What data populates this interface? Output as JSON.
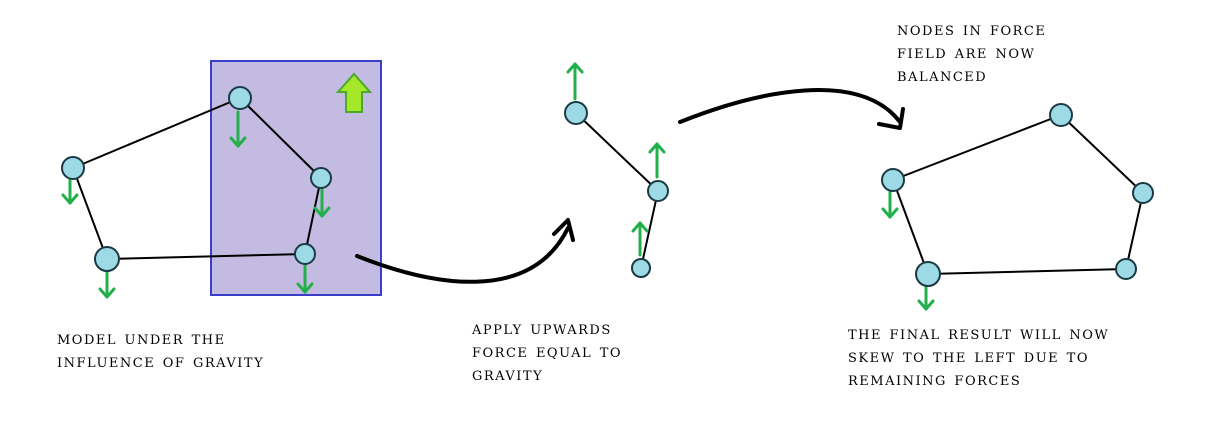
{
  "colors": {
    "node_fill": "#9ed9e6",
    "node_stroke": "#1a3a44",
    "edge": "#000000",
    "force_arrow": "#22b04a",
    "field_fill": "#c3bbe1",
    "field_stroke": "#3a3ec8",
    "field_arrow_fill": "#a5e82a",
    "field_arrow_stroke": "#4aa82a",
    "flow_arrow": "#000000"
  },
  "icons": {
    "force_arrow_down": "arrow-down-icon",
    "force_arrow_up": "arrow-up-icon",
    "field_direction": "up-arrow-icon"
  },
  "captions": {
    "step1": [
      "MODEL UNDER THE",
      "INFLUENCE OF GRAVITY"
    ],
    "step2": [
      "APPLY UPWARDS",
      "FORCE EQUAL TO",
      "GRAVITY"
    ],
    "step3_top": [
      "NODES IN FORCE",
      "FIELD ARE NOW",
      "BALANCED"
    ],
    "step3_bottom": [
      "THE FINAL RESULT WILL NOW",
      "SKEW TO THE LEFT DUE TO",
      "REMAINING FORCES"
    ]
  }
}
